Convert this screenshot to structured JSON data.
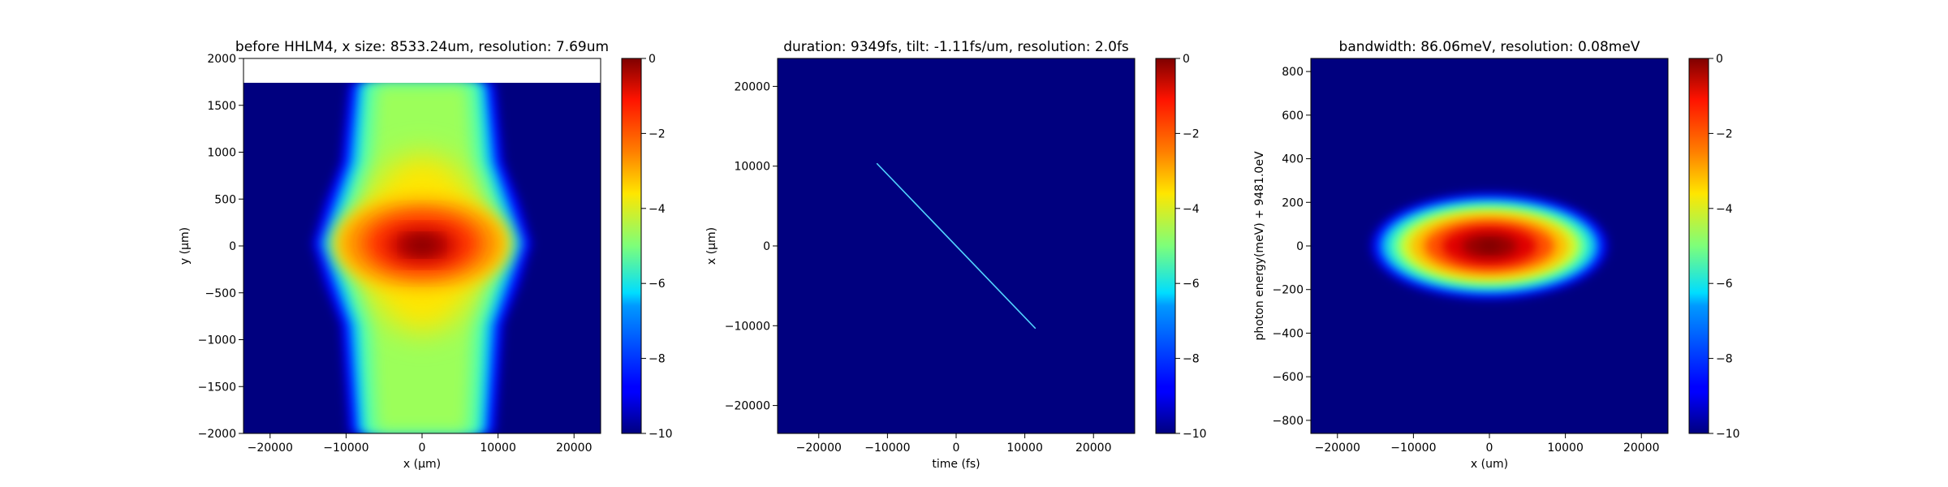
{
  "chart_data": [
    {
      "type": "heatmap",
      "title": "before HHLM4, x size: 8533.24um, resolution: 7.69um",
      "xlabel": "x (μm)",
      "ylabel": "y (μm)",
      "xlim": [
        -23500,
        23500
      ],
      "ylim": [
        -2000,
        2000
      ],
      "xticks": [
        -20000,
        -10000,
        0,
        10000,
        20000
      ],
      "yticks": [
        -2000,
        -1500,
        -1000,
        -500,
        0,
        500,
        1000,
        1500,
        2000
      ],
      "data_ymax": 1730,
      "colormap": "jet",
      "colorbar": {
        "min": -10,
        "max": 0,
        "ticks": [
          0,
          -2,
          -4,
          -6,
          -8,
          -10
        ]
      }
    },
    {
      "type": "heatmap",
      "title": "duration: 9349fs, tilt: -1.11fs/um, resolution: 2.0fs",
      "xlabel": "time (fs)",
      "ylabel": "x (μm)",
      "xlim": [
        -26000,
        26000
      ],
      "ylim": [
        -23500,
        23500
      ],
      "xticks": [
        -20000,
        -10000,
        0,
        10000,
        20000
      ],
      "yticks": [
        -20000,
        -10000,
        0,
        10000,
        20000
      ],
      "streak": {
        "start": [
          -11500,
          10300
        ],
        "end": [
          11500,
          -10300
        ]
      },
      "colormap": "jet",
      "colorbar": {
        "min": -10,
        "max": 0,
        "ticks": [
          0,
          -2,
          -4,
          -6,
          -8,
          -10
        ]
      }
    },
    {
      "type": "heatmap",
      "title": "bandwidth: 86.06meV, resolution: 0.08meV",
      "xlabel": "x (um)",
      "ylabel": "photon energy(meV) + 9481.0eV",
      "xlim": [
        -23500,
        23500
      ],
      "ylim": [
        -860,
        860
      ],
      "xticks": [
        -20000,
        -10000,
        0,
        10000,
        20000
      ],
      "yticks": [
        -800,
        -600,
        -400,
        -200,
        0,
        200,
        400,
        600,
        800
      ],
      "spot": {
        "center": [
          0,
          0
        ],
        "x_halfwidth": 16000,
        "y_halfwidth": 240
      },
      "colormap": "jet",
      "colorbar": {
        "min": -10,
        "max": 0,
        "ticks": [
          0,
          -2,
          -4,
          -6,
          -8,
          -10
        ]
      }
    }
  ]
}
